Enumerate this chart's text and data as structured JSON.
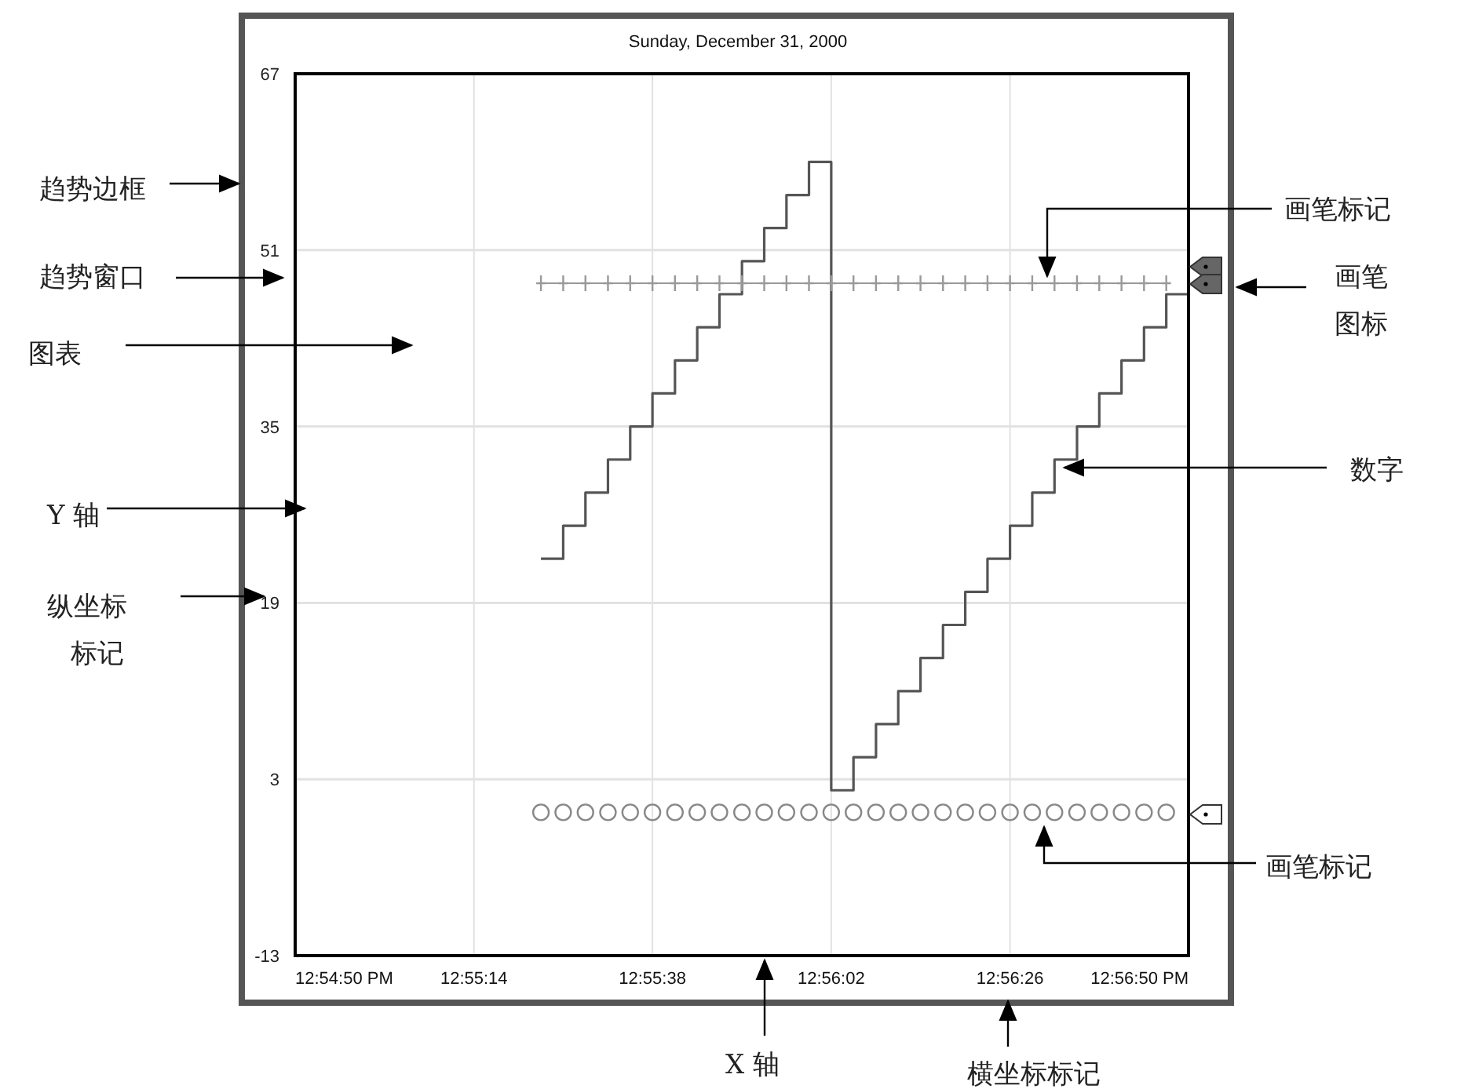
{
  "chart_data": {
    "type": "line",
    "title": "Sunday, December 31, 2000",
    "x": [
      12.92306,
      12.92389,
      12.92472,
      12.92556,
      12.92639,
      12.92722,
      12.92806,
      12.92889,
      12.92972,
      12.93056,
      12.93139,
      12.93222,
      12.93306,
      12.93389,
      12.93472,
      12.93556,
      12.93639,
      12.93722,
      12.93806,
      12.93889,
      12.93972,
      12.94056,
      12.94139,
      12.94222,
      12.94306,
      12.94389,
      12.94472,
      12.94556,
      12.94639,
      12.94722
    ],
    "series": [
      {
        "type": "step",
        "color": "#555555",
        "line_style": "solid",
        "values": [
          23,
          26,
          29,
          32,
          35,
          38,
          41,
          44,
          47,
          50,
          53,
          56,
          59,
          2,
          5,
          8,
          11,
          14,
          17,
          20,
          23,
          26,
          29,
          32,
          35,
          38,
          41,
          44,
          47,
          47
        ]
      },
      {
        "type": "line",
        "color": "#999999",
        "marker": "cross",
        "values": [
          48,
          48,
          48,
          48,
          48,
          48,
          48,
          48,
          48,
          48,
          48,
          48,
          48,
          48,
          48,
          48,
          48,
          48,
          48,
          48,
          48,
          48,
          48,
          48,
          48,
          48,
          48,
          48,
          48,
          null
        ]
      },
      {
        "type": "scatter",
        "color": "#888888",
        "marker": "circle",
        "values": [
          0,
          0,
          0,
          0,
          0,
          0,
          0,
          0,
          0,
          0,
          0,
          0,
          0,
          0,
          0,
          0,
          0,
          0,
          0,
          0,
          0,
          0,
          0,
          0,
          0,
          0,
          0,
          0,
          0,
          null
        ]
      }
    ],
    "xlim": [
      12.91389,
      12.94722
    ],
    "xticks": [
      {
        "value": 12.91389,
        "label": "12:54:50 PM"
      },
      {
        "value": 12.92056,
        "label": "12:55:14"
      },
      {
        "value": 12.92722,
        "label": "12:55:38"
      },
      {
        "value": 12.93389,
        "label": "12:56:02"
      },
      {
        "value": 12.94056,
        "label": "12:56:26"
      },
      {
        "value": 12.94722,
        "label": "12:56:50 PM"
      }
    ],
    "ylim": [
      -13,
      67
    ],
    "yticks": [
      -13,
      3,
      19,
      35,
      51,
      67
    ],
    "grid": true,
    "annotations": [
      "趋势边框",
      "趋势窗口",
      "图表",
      "Y 轴",
      "纵坐标",
      "标记",
      "画笔标记",
      "画笔",
      "图标",
      "数字",
      "画笔标记",
      "X 轴",
      "横坐标标记"
    ]
  }
}
